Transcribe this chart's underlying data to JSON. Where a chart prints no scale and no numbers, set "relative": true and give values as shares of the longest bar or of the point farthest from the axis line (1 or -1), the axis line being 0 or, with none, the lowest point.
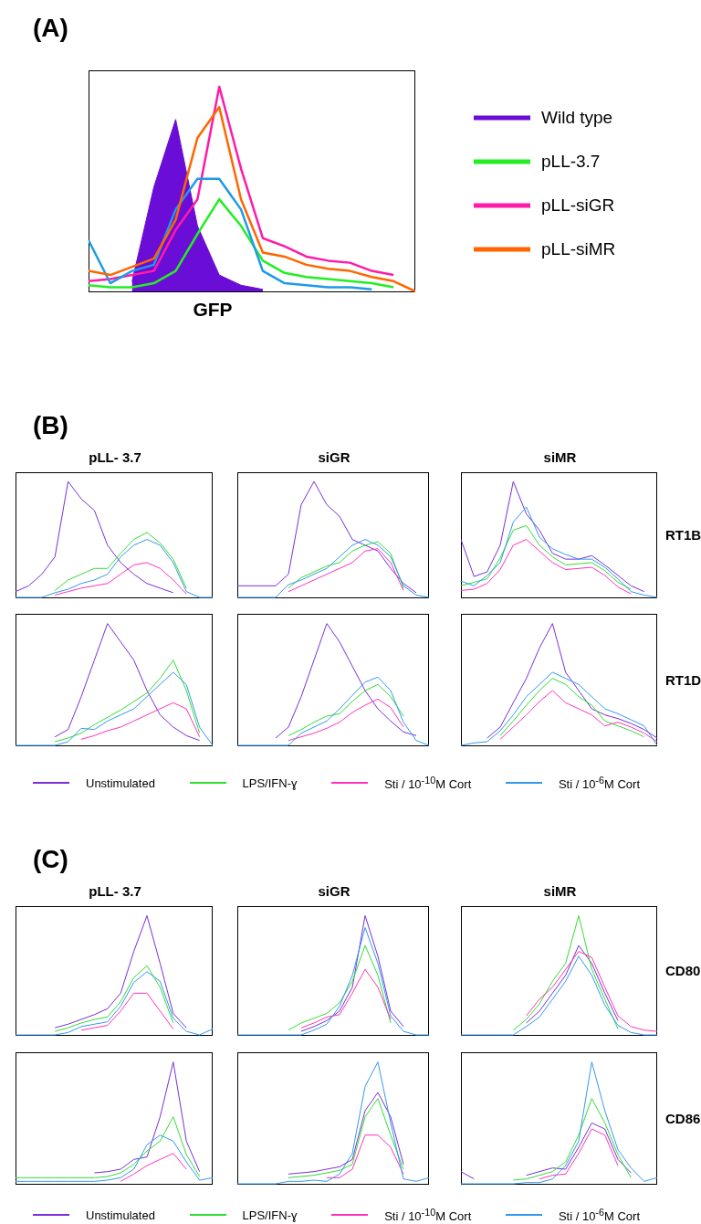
{
  "chart_data": [
    {
      "type": "line",
      "relative": true,
      "tick_labels": false,
      "grid": false,
      "legend": "right",
      "xlabel": "GFP",
      "annotations": [
        "(A)"
      ],
      "categories": [
        null,
        null,
        null,
        null,
        null,
        null,
        null,
        null,
        null,
        null,
        null,
        null,
        null,
        null,
        null,
        null
      ],
      "series": [
        {
          "name": "Wild type",
          "type": "area",
          "color": "#6a0dd6",
          "values": [
            null,
            null,
            0.05,
            0.51,
            0.84,
            0.32,
            0.08,
            0.03,
            0.01,
            null,
            null,
            null,
            null,
            null,
            null,
            null
          ]
        },
        {
          "name": "pLL-3.7",
          "color": "#22ee22",
          "values": [
            0.03,
            0.02,
            0.02,
            0.04,
            0.1,
            0.28,
            0.45,
            0.32,
            0.15,
            0.09,
            0.07,
            0.06,
            0.05,
            0.04,
            0.02,
            null
          ]
        },
        {
          "name": "pLL-siGR",
          "color": "#ff1aa8",
          "values": [
            0.05,
            0.06,
            0.08,
            0.1,
            0.3,
            0.45,
            1,
            0.6,
            0.26,
            0.22,
            0.17,
            0.15,
            0.14,
            0.1,
            0.08,
            null
          ]
        },
        {
          "color": "#1e9be8",
          "values": [
            0.25,
            0.04,
            0.1,
            0.13,
            0.4,
            0.55,
            0.55,
            0.4,
            0.1,
            0.04,
            0.03,
            0.02,
            0.02,
            0.01,
            null,
            null
          ]
        },
        {
          "name": "pLL-siMR",
          "color": "#ff6600",
          "values": [
            0.1,
            0.08,
            0.12,
            0.16,
            0.35,
            0.75,
            0.9,
            0.45,
            0.19,
            0.17,
            0.13,
            0.11,
            0.1,
            0.07,
            0.05,
            0
          ]
        }
      ]
    },
    {
      "type": "line",
      "relative": true,
      "tick_labels": false,
      "grid": false,
      "title": "pLL- 3.7",
      "annotations": [
        "(B)"
      ],
      "categories": [
        null,
        null,
        null,
        null,
        null,
        null,
        null,
        null,
        null,
        null,
        null,
        null,
        null,
        null,
        null,
        null
      ],
      "series": [
        {
          "color": "#7b2fd8",
          "values": [
            0.05,
            0.1,
            0.2,
            0.35,
            1,
            0.85,
            0.75,
            0.45,
            0.3,
            0.2,
            0.12,
            0.08,
            0.04,
            null,
            null,
            null
          ]
        },
        {
          "color": "#33dd33",
          "values": [
            null,
            null,
            null,
            0.06,
            0.15,
            0.2,
            0.25,
            0.25,
            0.38,
            0.5,
            0.56,
            0.47,
            0.33,
            0.08,
            null,
            null
          ]
        },
        {
          "color": "#ff33bb",
          "values": [
            null,
            null,
            null,
            0.02,
            0.05,
            0.08,
            0.1,
            0.12,
            0.2,
            0.28,
            0.3,
            0.25,
            0.15,
            0.03,
            null,
            null
          ]
        },
        {
          "color": "#3399ee",
          "values": [
            0,
            0,
            0,
            0.04,
            0.07,
            0.12,
            0.15,
            0.2,
            0.35,
            0.45,
            0.5,
            0.45,
            0.3,
            0.05,
            0,
            0
          ]
        }
      ]
    },
    {
      "type": "line",
      "relative": true,
      "tick_labels": false,
      "grid": false,
      "title": "siGR",
      "categories": [
        null,
        null,
        null,
        null,
        null,
        null,
        null,
        null,
        null,
        null,
        null,
        null,
        null,
        null,
        null,
        null
      ],
      "series": [
        {
          "color": "#7b2fd8",
          "values": [
            0.1,
            0.1,
            0.1,
            0.1,
            0.2,
            0.8,
            1,
            0.8,
            0.7,
            0.5,
            0.45,
            0.4,
            0.25,
            0.12,
            0.04,
            null
          ]
        },
        {
          "color": "#33dd33",
          "values": [
            null,
            null,
            null,
            null,
            0.08,
            0.17,
            0.22,
            0.27,
            0.3,
            0.4,
            0.45,
            0.48,
            0.38,
            0.08,
            null,
            null
          ]
        },
        {
          "color": "#ff33bb",
          "values": [
            null,
            null,
            null,
            null,
            0.05,
            0.1,
            0.15,
            0.2,
            0.25,
            0.3,
            0.4,
            0.42,
            0.3,
            0.06,
            null,
            null
          ]
        },
        {
          "color": "#3399ee",
          "values": [
            0,
            0,
            0,
            0,
            0.11,
            0.15,
            0.2,
            0.25,
            0.35,
            0.45,
            0.5,
            0.45,
            0.35,
            0.1,
            0.02,
            0
          ]
        }
      ]
    },
    {
      "type": "line",
      "relative": true,
      "tick_labels": false,
      "grid": false,
      "title": "siMR",
      "y2label": "RT1B",
      "categories": [
        null,
        null,
        null,
        null,
        null,
        null,
        null,
        null,
        null,
        null,
        null,
        null,
        null,
        null,
        null,
        null
      ],
      "series": [
        {
          "color": "#7b2fd8",
          "values": [
            0.5,
            0.18,
            0.22,
            0.45,
            1,
            0.72,
            0.58,
            0.38,
            0.33,
            0.33,
            0.36,
            0.28,
            0.19,
            0.1,
            0.05,
            null
          ]
        },
        {
          "color": "#33dd33",
          "values": [
            0.1,
            0.13,
            0.16,
            0.34,
            0.58,
            0.62,
            0.45,
            0.35,
            0.28,
            0.29,
            0.3,
            0.23,
            0.13,
            0.07,
            null,
            null
          ]
        },
        {
          "color": "#ff33bb",
          "values": [
            0.06,
            0.07,
            0.12,
            0.24,
            0.45,
            0.5,
            0.4,
            0.3,
            0.24,
            0.25,
            0.26,
            0.19,
            0.09,
            0.03,
            null,
            null
          ]
        },
        {
          "color": "#3399ee",
          "values": [
            0.14,
            0.1,
            0.19,
            0.3,
            0.65,
            0.78,
            0.52,
            0.42,
            0.37,
            0.33,
            0.33,
            0.26,
            0.16,
            0.05,
            0.02,
            0
          ]
        }
      ]
    },
    {
      "type": "line",
      "relative": true,
      "tick_labels": false,
      "grid": false,
      "legend": "bottom",
      "categories": [
        null,
        null,
        null,
        null,
        null,
        null,
        null,
        null,
        null,
        null,
        null,
        null,
        null,
        null,
        null,
        null
      ],
      "series": [
        {
          "name": "Unstimulated",
          "color": "#7b2fd8",
          "values": [
            null,
            null,
            null,
            0.07,
            0.13,
            0.4,
            0.7,
            1,
            0.85,
            0.7,
            0.45,
            0.25,
            0.15,
            0.08,
            0.04,
            null
          ]
        },
        {
          "name": "LPS/IFN-ɣ",
          "color": "#33dd33",
          "values": [
            null,
            null,
            null,
            0.03,
            0.06,
            0.1,
            0.17,
            0.23,
            0.29,
            0.36,
            0.43,
            0.55,
            0.7,
            0.45,
            0.1,
            null
          ]
        },
        {
          "name": "Sti / 10$^{-10}$M Cort",
          "color": "#ff33bb",
          "values": [
            null,
            null,
            null,
            null,
            null,
            0.05,
            0.08,
            0.12,
            0.15,
            0.2,
            0.25,
            0.3,
            0.35,
            0.3,
            0.07,
            null
          ]
        },
        {
          "name": "Sti / 10$^{-6}$M Cort",
          "color": "#3399ee",
          "values": [
            0,
            0,
            0,
            0,
            0.03,
            0.14,
            0.13,
            0.2,
            0.25,
            0.3,
            0.4,
            0.5,
            0.6,
            0.5,
            0.15,
            0
          ]
        }
      ]
    },
    {
      "type": "line",
      "relative": true,
      "tick_labels": false,
      "grid": false,
      "categories": [
        null,
        null,
        null,
        null,
        null,
        null,
        null,
        null,
        null,
        null,
        null,
        null,
        null,
        null,
        null,
        null
      ],
      "series": [
        {
          "color": "#7b2fd8",
          "values": [
            null,
            null,
            null,
            0.06,
            0.15,
            0.4,
            0.7,
            1,
            0.85,
            0.65,
            0.45,
            0.3,
            0.2,
            0.11,
            0.08,
            null
          ]
        },
        {
          "color": "#33dd33",
          "values": [
            null,
            null,
            null,
            null,
            0.08,
            0.13,
            0.19,
            0.24,
            0.26,
            0.36,
            0.45,
            0.5,
            0.4,
            0.24,
            null,
            null
          ]
        },
        {
          "color": "#ff33bb",
          "values": [
            null,
            null,
            null,
            null,
            0.04,
            0.07,
            0.1,
            0.14,
            0.19,
            0.27,
            0.33,
            0.38,
            0.31,
            0.15,
            null,
            null
          ]
        },
        {
          "color": "#3399ee",
          "values": [
            0,
            0,
            0,
            0,
            0,
            0.1,
            0.15,
            0.2,
            0.3,
            0.41,
            0.52,
            0.56,
            0.45,
            0.19,
            0.04,
            0
          ]
        }
      ]
    },
    {
      "type": "line",
      "relative": true,
      "tick_labels": false,
      "grid": false,
      "y2label": "RT1D",
      "categories": [
        null,
        null,
        null,
        null,
        null,
        null,
        null,
        null,
        null,
        null,
        null,
        null,
        null,
        null,
        null,
        null
      ],
      "series": [
        {
          "color": "#7b2fd8",
          "values": [
            null,
            null,
            0.06,
            0.15,
            0.35,
            0.55,
            0.8,
            1,
            0.6,
            0.45,
            0.3,
            0.25,
            0.22,
            0.18,
            0.13,
            0.06
          ]
        },
        {
          "color": "#33dd33",
          "values": [
            null,
            null,
            null,
            0.08,
            0.2,
            0.33,
            0.45,
            0.55,
            0.5,
            0.4,
            0.33,
            0.2,
            0.16,
            0.12,
            0.07,
            null
          ]
        },
        {
          "color": "#ff33bb",
          "values": [
            null,
            null,
            null,
            0.05,
            0.15,
            0.25,
            0.36,
            0.45,
            0.35,
            0.3,
            0.25,
            0.16,
            0.19,
            0.15,
            0.1,
            0.03
          ]
        },
        {
          "color": "#3399ee",
          "values": [
            0,
            0.02,
            0.03,
            0.12,
            0.25,
            0.4,
            0.5,
            0.6,
            0.55,
            0.5,
            0.4,
            0.3,
            0.26,
            0.21,
            0.16,
            0
          ]
        }
      ]
    },
    {
      "type": "line",
      "relative": true,
      "tick_labels": false,
      "grid": false,
      "title": "pLL- 3.7",
      "annotations": [
        "(C)"
      ],
      "categories": [
        null,
        null,
        null,
        null,
        null,
        null,
        null,
        null,
        null,
        null,
        null,
        null,
        null,
        null,
        null,
        null
      ],
      "series": [
        {
          "color": "#7b2fd8",
          "values": [
            null,
            null,
            null,
            0.06,
            0.09,
            0.13,
            0.17,
            0.22,
            0.35,
            0.7,
            1,
            0.6,
            0.18,
            0.06,
            null,
            null
          ]
        },
        {
          "color": "#33dd33",
          "values": [
            null,
            null,
            null,
            0.03,
            0.06,
            0.1,
            0.13,
            0.15,
            0.28,
            0.48,
            0.58,
            0.4,
            0.1,
            null,
            null,
            null
          ]
        },
        {
          "color": "#ff33bb",
          "values": [
            null,
            null,
            null,
            null,
            null,
            0.04,
            0.06,
            0.08,
            0.2,
            0.35,
            0.35,
            0.2,
            0.05,
            null,
            null,
            null
          ]
        },
        {
          "color": "#3399ee",
          "values": [
            0,
            0,
            0,
            0,
            0.02,
            0.07,
            0.09,
            0.11,
            0.24,
            0.44,
            0.53,
            0.45,
            0.14,
            0.03,
            0,
            0.05
          ]
        }
      ]
    },
    {
      "type": "line",
      "relative": true,
      "tick_labels": false,
      "grid": false,
      "title": "siGR",
      "categories": [
        null,
        null,
        null,
        null,
        null,
        null,
        null,
        null,
        null,
        null,
        null,
        null,
        null,
        null,
        null,
        null
      ],
      "series": [
        {
          "color": "#7b2fd8",
          "values": [
            null,
            null,
            null,
            null,
            null,
            0.03,
            0.07,
            0.12,
            0.2,
            0.4,
            1,
            0.66,
            0.2,
            0.07,
            null,
            null
          ]
        },
        {
          "color": "#33dd33",
          "values": [
            null,
            null,
            null,
            null,
            0.04,
            0.1,
            0.14,
            0.18,
            0.27,
            0.45,
            0.75,
            0.5,
            0.1,
            null,
            null,
            null
          ]
        },
        {
          "color": "#ff33bb",
          "values": [
            null,
            null,
            null,
            null,
            null,
            0.06,
            0.1,
            0.15,
            0.17,
            0.35,
            0.55,
            0.4,
            0.13,
            null,
            null,
            null
          ]
        },
        {
          "color": "#3399ee",
          "values": [
            0,
            0,
            0,
            0,
            0,
            0,
            0.04,
            0.09,
            0.24,
            0.5,
            0.9,
            0.6,
            0.16,
            0.03,
            0,
            0
          ]
        }
      ]
    },
    {
      "type": "line",
      "relative": true,
      "tick_labels": false,
      "grid": false,
      "title": "siMR",
      "y2label": "CD80",
      "categories": [
        null,
        null,
        null,
        null,
        null,
        null,
        null,
        null,
        null,
        null,
        null,
        null,
        null,
        null,
        null,
        null
      ],
      "series": [
        {
          "color": "#7b2fd8",
          "values": [
            null,
            null,
            null,
            null,
            null,
            0.1,
            0.2,
            0.35,
            0.5,
            0.75,
            0.6,
            0.35,
            0.12,
            null,
            null,
            null
          ]
        },
        {
          "color": "#33dd33",
          "values": [
            null,
            null,
            null,
            null,
            0.04,
            0.13,
            0.26,
            0.45,
            0.6,
            1,
            0.55,
            0.3,
            0.05,
            null,
            null,
            null
          ]
        },
        {
          "color": "#ff33bb",
          "values": [
            null,
            null,
            null,
            null,
            null,
            0.16,
            0.3,
            0.4,
            0.55,
            0.7,
            0.65,
            0.4,
            0.16,
            0.07,
            0.04,
            0.03
          ]
        },
        {
          "color": "#3399ee",
          "values": [
            0,
            0,
            0,
            0,
            0,
            0.07,
            0.15,
            0.3,
            0.45,
            0.66,
            0.5,
            0.25,
            0.08,
            0.02,
            0,
            0
          ]
        }
      ]
    },
    {
      "type": "line",
      "relative": true,
      "tick_labels": false,
      "grid": false,
      "legend": "bottom",
      "categories": [
        null,
        null,
        null,
        null,
        null,
        null,
        null,
        null,
        null,
        null,
        null,
        null,
        null,
        null,
        null,
        null
      ],
      "series": [
        {
          "name": "Unstimulated",
          "color": "#7b2fd8",
          "values": [
            null,
            null,
            null,
            null,
            null,
            null,
            0.09,
            0.1,
            0.12,
            0.2,
            0.22,
            0.55,
            1,
            0.35,
            0.1,
            null
          ]
        },
        {
          "name": "LPS/IFN-ɣ",
          "color": "#33dd33",
          "values": [
            0.05,
            0.05,
            0.05,
            0.05,
            0.05,
            0.05,
            0.05,
            0.06,
            0.09,
            0.16,
            0.27,
            0.35,
            0.55,
            0.24,
            0.06,
            null
          ]
        },
        {
          "name": "Sti / 10$^{-10}$M Cort",
          "color": "#ff33bb",
          "values": [
            null,
            null,
            null,
            null,
            null,
            null,
            null,
            null,
            0.02,
            0.08,
            0.15,
            0.2,
            0.25,
            0.12,
            null,
            null
          ]
        },
        {
          "name": "Sti / 10$^{-6}$M Cort",
          "color": "#3399ee",
          "values": [
            0.02,
            0.02,
            0.02,
            0.02,
            0.02,
            0.02,
            0.02,
            0.03,
            0.05,
            0.12,
            0.32,
            0.4,
            0.35,
            0.18,
            0.03,
            0.05
          ]
        }
      ]
    },
    {
      "type": "line",
      "relative": true,
      "tick_labels": false,
      "grid": false,
      "categories": [
        null,
        null,
        null,
        null,
        null,
        null,
        null,
        null,
        null,
        null,
        null,
        null,
        null,
        null,
        null,
        null
      ],
      "series": [
        {
          "color": "#7b2fd8",
          "values": [
            null,
            null,
            null,
            null,
            0.08,
            0.09,
            0.1,
            0.12,
            0.14,
            0.2,
            0.6,
            0.75,
            0.55,
            0.16,
            null,
            null
          ]
        },
        {
          "color": "#33dd33",
          "values": [
            null,
            null,
            null,
            null,
            0.05,
            0.06,
            0.07,
            0.09,
            0.11,
            0.16,
            0.55,
            0.7,
            0.4,
            0.12,
            null,
            null
          ]
        },
        {
          "color": "#ff33bb",
          "values": [
            null,
            null,
            null,
            null,
            null,
            null,
            null,
            0.05,
            0.05,
            0.12,
            0.4,
            0.4,
            0.3,
            0.08,
            null,
            null
          ]
        },
        {
          "color": "#3399ee",
          "values": [
            0,
            0,
            0,
            0,
            0.02,
            0.02,
            0.03,
            0.02,
            0.08,
            0.25,
            0.8,
            1,
            0.5,
            0.04,
            0.02,
            0.05
          ]
        }
      ]
    },
    {
      "type": "line",
      "relative": true,
      "tick_labels": false,
      "grid": false,
      "y2label": "CD86",
      "categories": [
        null,
        null,
        null,
        null,
        null,
        null,
        null,
        null,
        null,
        null,
        null,
        null,
        null,
        null,
        null,
        null
      ],
      "series": [
        {
          "color": "#7b2fd8",
          "values": [
            0.1,
            0.04,
            null,
            null,
            null,
            0.07,
            0.1,
            0.13,
            0.12,
            0.3,
            0.5,
            0.45,
            0.2,
            0.09,
            null,
            null
          ]
        },
        {
          "color": "#33dd33",
          "values": [
            null,
            null,
            null,
            null,
            0.03,
            0.04,
            0.07,
            0.1,
            0.18,
            0.4,
            0.7,
            0.5,
            0.24,
            0.05,
            null,
            null
          ]
        },
        {
          "color": "#ff33bb",
          "values": [
            null,
            null,
            null,
            null,
            null,
            null,
            0.04,
            0.07,
            0.08,
            0.25,
            0.45,
            0.4,
            0.15,
            null,
            null,
            null
          ]
        },
        {
          "color": "#3399ee",
          "values": [
            0,
            0,
            0,
            0,
            0,
            0.01,
            0.01,
            0.04,
            0.15,
            0.35,
            1,
            0.6,
            0.28,
            0.13,
            0.02,
            0.05
          ]
        }
      ]
    }
  ]
}
